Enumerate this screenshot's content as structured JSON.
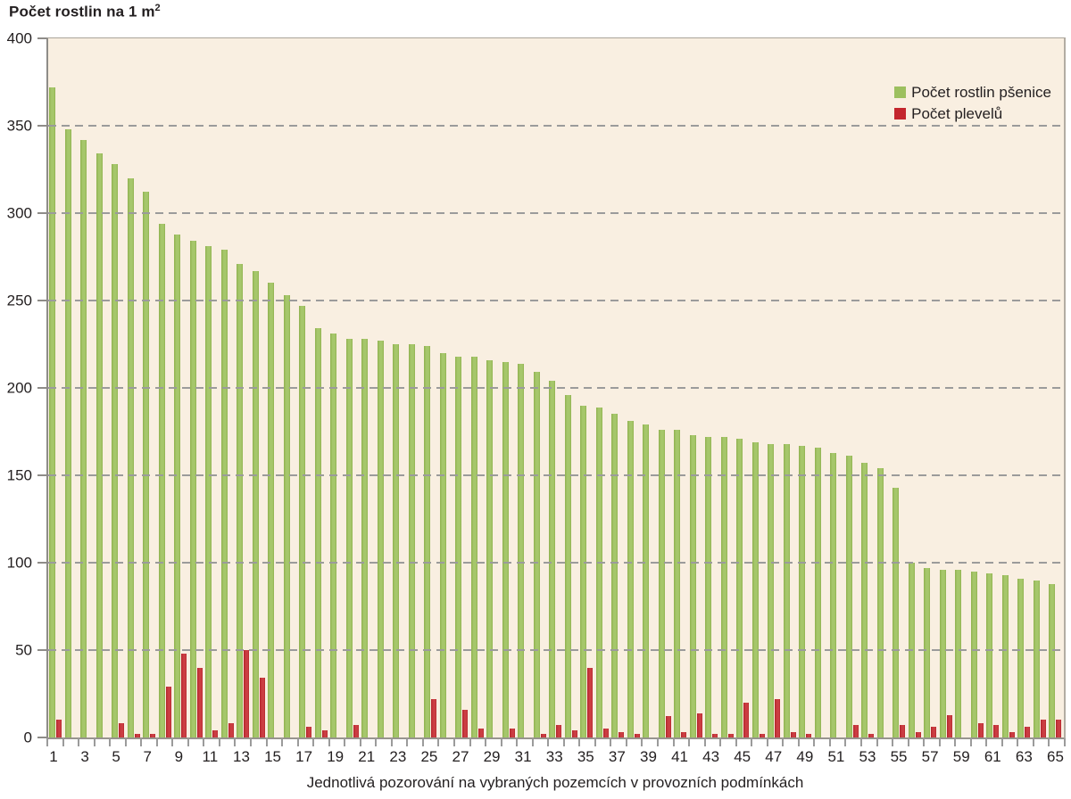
{
  "title": {
    "text": "Počet rostlin na 1 m",
    "superscript": "2"
  },
  "legend": {
    "items": [
      {
        "label": "Počet rostlin pšenice",
        "color": "#9dc05f",
        "series": "wheat"
      },
      {
        "label": "Počet plevelů",
        "color": "#c4262d",
        "series": "weeds"
      }
    ],
    "position": "top-right inside plot"
  },
  "x_axis": {
    "title": "Jednotlivá pozorování na vybraných pozemcích v provozních podmínkách",
    "tick_labels": [
      1,
      3,
      5,
      7,
      9,
      11,
      13,
      15,
      17,
      19,
      21,
      23,
      25,
      27,
      29,
      31,
      33,
      35,
      37,
      39,
      41,
      43,
      45,
      47,
      49,
      51,
      53,
      55,
      57,
      59,
      61,
      63,
      65
    ]
  },
  "y_axis": {
    "tick_labels": [
      400,
      350,
      300,
      250,
      200,
      150,
      100,
      50,
      0
    ],
    "min": 0,
    "max": 400,
    "grid_interval": 50
  },
  "colors": {
    "plot_background": "#f9efe1",
    "page_background": "#ffffff",
    "gridline": "#9b9b9b",
    "axis": "#8e8c88",
    "text": "#231f20",
    "wheat_bar": "#9dc05f",
    "weed_bar": "#c4262d"
  },
  "chart_data": {
    "type": "bar",
    "title": "Počet rostlin na 1 m²",
    "xlabel": "Jednotlivá pozorování na vybraných pozemcích v provozních podmínkách",
    "ylabel": "Počet rostlin na 1 m²",
    "ylim": [
      0,
      400
    ],
    "grid": "horizontal dashed every 50",
    "legend_position": "top-right",
    "categories": [
      1,
      2,
      3,
      4,
      5,
      6,
      7,
      8,
      9,
      10,
      11,
      12,
      13,
      14,
      15,
      16,
      17,
      18,
      19,
      20,
      21,
      22,
      23,
      24,
      25,
      26,
      27,
      28,
      29,
      30,
      31,
      32,
      33,
      34,
      35,
      36,
      37,
      38,
      39,
      40,
      41,
      42,
      43,
      44,
      45,
      46,
      47,
      48,
      49,
      50,
      51,
      52,
      53,
      54,
      55,
      56,
      57,
      58,
      59,
      60,
      61,
      62,
      63,
      64,
      65
    ],
    "series": [
      {
        "name": "Počet rostlin pšenice",
        "color": "#9dc05f",
        "values": [
          372,
          348,
          342,
          334,
          328,
          320,
          312,
          294,
          288,
          284,
          281,
          279,
          271,
          267,
          260,
          253,
          247,
          234,
          231,
          228,
          228,
          227,
          225,
          225,
          224,
          220,
          218,
          218,
          216,
          215,
          214,
          209,
          204,
          196,
          190,
          189,
          185,
          181,
          179,
          176,
          176,
          173,
          172,
          172,
          171,
          169,
          168,
          168,
          167,
          166,
          163,
          161,
          157,
          154,
          143,
          100,
          97,
          96,
          96,
          95,
          94,
          93,
          91,
          90,
          88
        ]
      },
      {
        "name": "Počet plevelů",
        "color": "#c4262d",
        "values": [
          10,
          0,
          0,
          0,
          8,
          2,
          2,
          29,
          48,
          40,
          4,
          8,
          50,
          34,
          0,
          0,
          6,
          4,
          0,
          7,
          0,
          0,
          0,
          0,
          22,
          0,
          16,
          5,
          0,
          5,
          0,
          2,
          7,
          4,
          40,
          5,
          3,
          2,
          0,
          12,
          3,
          14,
          2,
          2,
          20,
          2,
          22,
          3,
          2,
          0,
          0,
          7,
          2,
          0,
          7,
          3,
          6,
          13,
          0,
          8,
          7,
          3,
          6,
          10,
          10
        ]
      }
    ]
  }
}
